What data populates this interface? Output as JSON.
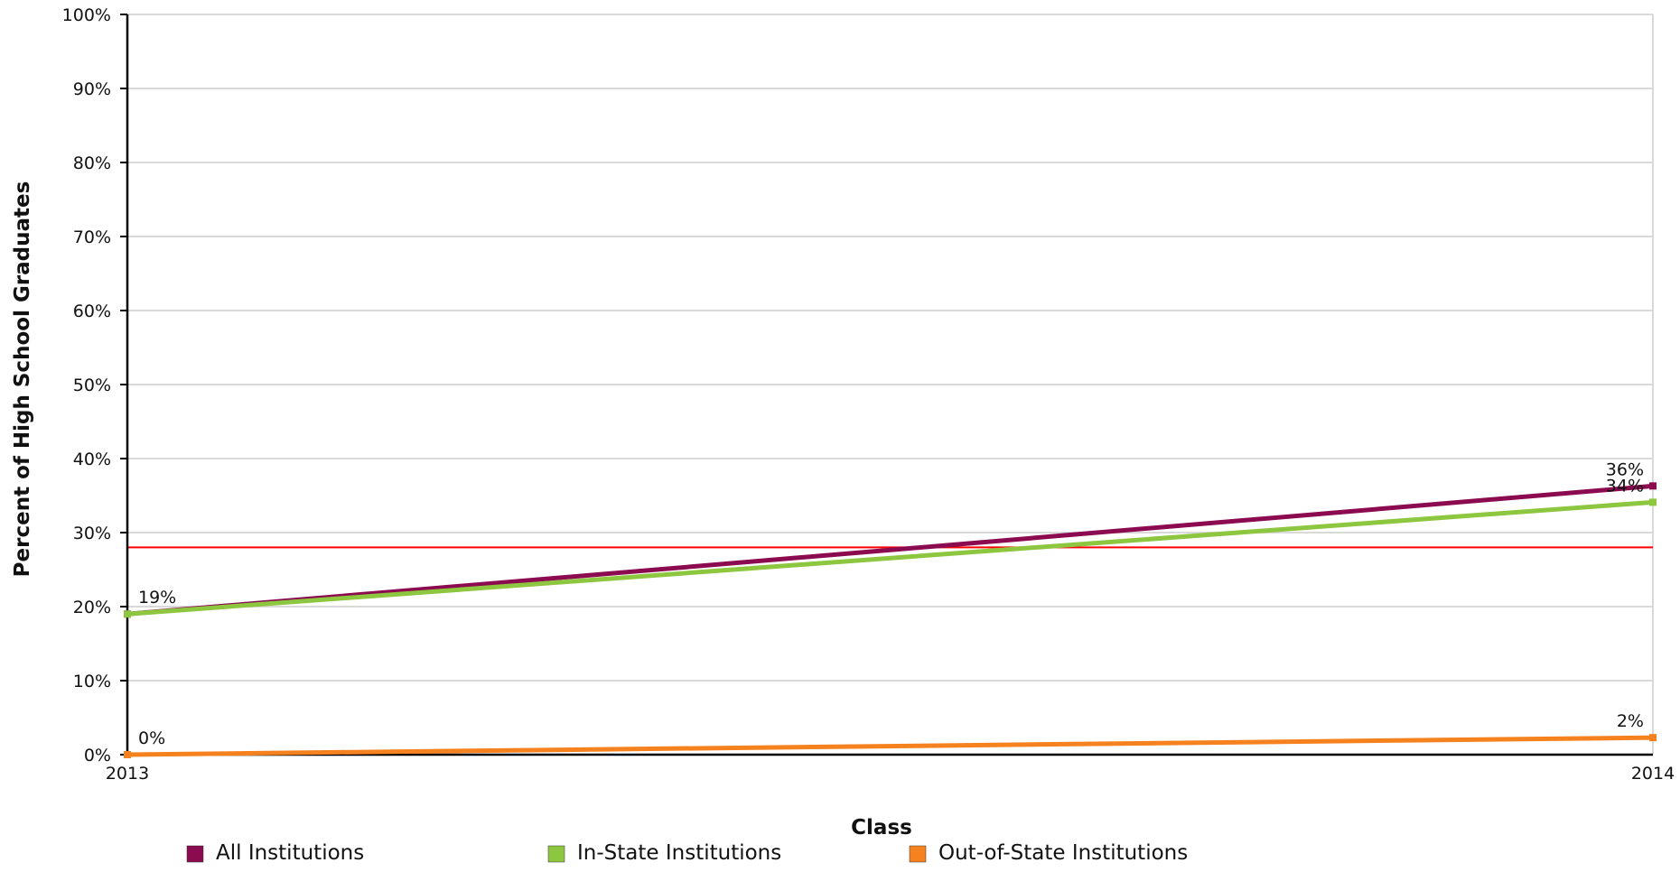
{
  "chart_data": {
    "type": "line",
    "title": "",
    "xlabel": "Class",
    "ylabel": "Percent of High School Graduates",
    "x": [
      "2013",
      "2014"
    ],
    "ylim": [
      0,
      100
    ],
    "y_ticks": [
      "0%",
      "10%",
      "20%",
      "30%",
      "40%",
      "50%",
      "60%",
      "70%",
      "80%",
      "90%",
      "100%"
    ],
    "y_tick_values": [
      0,
      10,
      20,
      30,
      40,
      50,
      60,
      70,
      80,
      90,
      100
    ],
    "grid": true,
    "reference_line": {
      "value": 28,
      "color": "#ff0000"
    },
    "legend_position": "bottom",
    "series": [
      {
        "name": "All Institutions",
        "color": "#8b0a50",
        "values": [
          19,
          36.3
        ],
        "labels": [
          "19%",
          "36%"
        ]
      },
      {
        "name": "In-State Institutions",
        "color": "#8dc63f",
        "values": [
          19,
          34.1
        ],
        "labels": [
          "",
          "34%"
        ]
      },
      {
        "name": "Out-of-State Institutions",
        "color": "#f5821f",
        "values": [
          0,
          2.3
        ],
        "labels": [
          "0%",
          "2%"
        ]
      }
    ]
  }
}
